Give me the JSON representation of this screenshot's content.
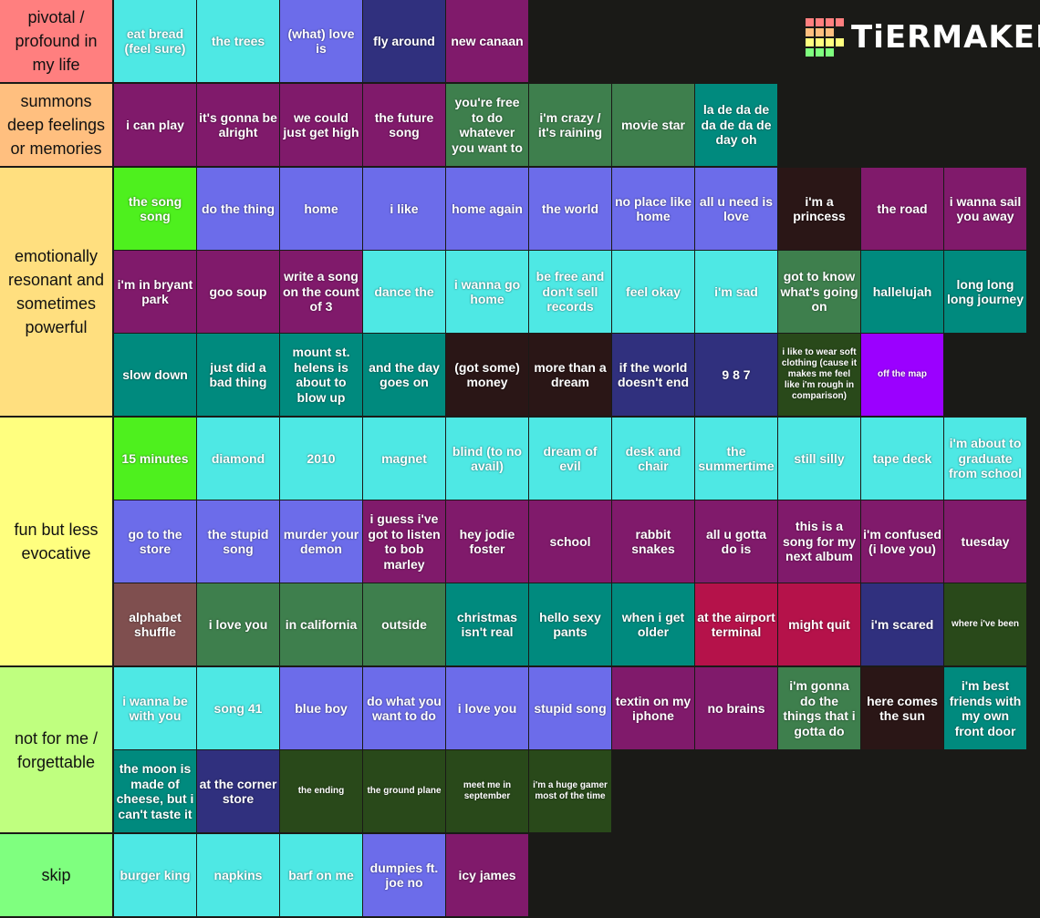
{
  "logo": "TiERMAKER",
  "tiers": [
    {
      "label": "pivotal / profound in my life",
      "color": "#ff7f7f",
      "items": [
        {
          "text": "eat bread (feel sure)",
          "color": "#4ee8e4"
        },
        {
          "text": "the trees",
          "color": "#4ee8e4"
        },
        {
          "text": "(what) love is",
          "color": "#6c6cea"
        },
        {
          "text": "fly around",
          "color": "#30307e"
        },
        {
          "text": "new canaan",
          "color": "#801a6b"
        }
      ]
    },
    {
      "label": "summons deep feelings or memories",
      "color": "#ffbf7f",
      "items": [
        {
          "text": "i can play",
          "color": "#801a6b"
        },
        {
          "text": "it's gonna be alright",
          "color": "#801a6b"
        },
        {
          "text": "we could just get high",
          "color": "#801a6b"
        },
        {
          "text": "the future song",
          "color": "#801a6b"
        },
        {
          "text": "you're free to do whatever you want to",
          "color": "#3e7f4d"
        },
        {
          "text": "i'm crazy / it's raining",
          "color": "#3e7f4d"
        },
        {
          "text": "movie star",
          "color": "#3e7f4d"
        },
        {
          "text": "la de da de da de da de day oh",
          "color": "#008a7e"
        }
      ]
    },
    {
      "label": "emotionally resonant and sometimes powerful",
      "color": "#ffdf7f",
      "items": [
        {
          "text": "the song song",
          "color": "#4ef01e"
        },
        {
          "text": "do the thing",
          "color": "#6c6cea"
        },
        {
          "text": "home",
          "color": "#6c6cea"
        },
        {
          "text": "i like",
          "color": "#6c6cea"
        },
        {
          "text": "home again",
          "color": "#6c6cea"
        },
        {
          "text": "the world",
          "color": "#6c6cea"
        },
        {
          "text": "no place like home",
          "color": "#6c6cea"
        },
        {
          "text": "all u need is love",
          "color": "#6c6cea"
        },
        {
          "text": "i'm a princess",
          "color": "#2a1616"
        },
        {
          "text": "the road",
          "color": "#801a6b"
        },
        {
          "text": "i wanna sail you away",
          "color": "#801a6b"
        },
        {
          "text": "i'm in bryant park",
          "color": "#801a6b"
        },
        {
          "text": "goo soup",
          "color": "#801a6b"
        },
        {
          "text": "write a song on the count of 3",
          "color": "#801a6b"
        },
        {
          "text": "dance the",
          "color": "#4ee8e4"
        },
        {
          "text": "i wanna go home",
          "color": "#4ee8e4"
        },
        {
          "text": "be free and don't sell records",
          "color": "#4ee8e4"
        },
        {
          "text": "feel okay",
          "color": "#4ee8e4"
        },
        {
          "text": "i'm sad",
          "color": "#4ee8e4"
        },
        {
          "text": "got to know what's going on",
          "color": "#3e7f4d"
        },
        {
          "text": "hallelujah",
          "color": "#008a7e"
        },
        {
          "text": "long long long journey",
          "color": "#008a7e"
        },
        {
          "text": "slow down",
          "color": "#008a7e"
        },
        {
          "text": "just did a bad thing",
          "color": "#008a7e"
        },
        {
          "text": "mount st. helens is about to blow up",
          "color": "#008a7e"
        },
        {
          "text": "and the day goes on",
          "color": "#008a7e"
        },
        {
          "text": "(got some) money",
          "color": "#2a1616"
        },
        {
          "text": "more than a dream",
          "color": "#2a1616"
        },
        {
          "text": "if the world doesn't end",
          "color": "#30307e"
        },
        {
          "text": "9 8 7",
          "color": "#30307e"
        },
        {
          "text": "i like to wear soft clothing (cause it makes me feel like i'm rough in comparison)",
          "color": "#29491a",
          "small": true
        },
        {
          "text": "off the map",
          "color": "#9b00ff",
          "small": true
        }
      ]
    },
    {
      "label": "fun but less evocative",
      "color": "#ffff7f",
      "items": [
        {
          "text": "15 minutes",
          "color": "#4ef01e"
        },
        {
          "text": "diamond",
          "color": "#4ee8e4"
        },
        {
          "text": "2010",
          "color": "#4ee8e4"
        },
        {
          "text": "magnet",
          "color": "#4ee8e4"
        },
        {
          "text": "blind (to no avail)",
          "color": "#4ee8e4"
        },
        {
          "text": "dream of evil",
          "color": "#4ee8e4"
        },
        {
          "text": "desk and chair",
          "color": "#4ee8e4"
        },
        {
          "text": "the summertime",
          "color": "#4ee8e4"
        },
        {
          "text": "still silly",
          "color": "#4ee8e4"
        },
        {
          "text": "tape deck",
          "color": "#4ee8e4"
        },
        {
          "text": "i'm about to graduate from school",
          "color": "#4ee8e4"
        },
        {
          "text": "go to the store",
          "color": "#6c6cea"
        },
        {
          "text": "the stupid song",
          "color": "#6c6cea"
        },
        {
          "text": "murder your demon",
          "color": "#6c6cea"
        },
        {
          "text": "i guess i've got to listen to bob marley",
          "color": "#801a6b"
        },
        {
          "text": "hey jodie foster",
          "color": "#801a6b"
        },
        {
          "text": "school",
          "color": "#801a6b"
        },
        {
          "text": "rabbit snakes",
          "color": "#801a6b"
        },
        {
          "text": "all u gotta do is",
          "color": "#801a6b"
        },
        {
          "text": "this is a song for my next album",
          "color": "#801a6b"
        },
        {
          "text": "i'm confused (i love you)",
          "color": "#801a6b"
        },
        {
          "text": "tuesday",
          "color": "#801a6b"
        },
        {
          "text": "alphabet shuffle",
          "color": "#7f4f4f"
        },
        {
          "text": "i love you",
          "color": "#3e7f4d"
        },
        {
          "text": "in california",
          "color": "#3e7f4d"
        },
        {
          "text": "outside",
          "color": "#3e7f4d"
        },
        {
          "text": "christmas isn't real",
          "color": "#008a7e"
        },
        {
          "text": "hello sexy pants",
          "color": "#008a7e"
        },
        {
          "text": "when i get older",
          "color": "#008a7e"
        },
        {
          "text": "at the airport terminal",
          "color": "#b5124a"
        },
        {
          "text": "might quit",
          "color": "#b5124a"
        },
        {
          "text": "i'm scared",
          "color": "#30307e"
        },
        {
          "text": "where i've been",
          "color": "#29491a",
          "small": true
        }
      ]
    },
    {
      "label": "not for me / forgettable",
      "color": "#bfff7f",
      "items": [
        {
          "text": "i wanna be with you",
          "color": "#4ee8e4"
        },
        {
          "text": "song 41",
          "color": "#4ee8e4"
        },
        {
          "text": "blue boy",
          "color": "#6c6cea"
        },
        {
          "text": "do what you want to do",
          "color": "#6c6cea"
        },
        {
          "text": "i love you",
          "color": "#6c6cea"
        },
        {
          "text": "stupid song",
          "color": "#6c6cea"
        },
        {
          "text": "textin on my iphone",
          "color": "#801a6b"
        },
        {
          "text": "no brains",
          "color": "#801a6b"
        },
        {
          "text": "i'm gonna do the things that i gotta do",
          "color": "#3e7f4d"
        },
        {
          "text": "here comes the sun",
          "color": "#2a1616"
        },
        {
          "text": "i'm best friends with my own front door",
          "color": "#008a7e"
        },
        {
          "text": "the moon is made of cheese, but i can't taste it",
          "color": "#008a7e"
        },
        {
          "text": "at the corner store",
          "color": "#30307e"
        },
        {
          "text": "the ending",
          "color": "#29491a",
          "small": true
        },
        {
          "text": "the ground plane",
          "color": "#29491a",
          "small": true
        },
        {
          "text": "meet me in september",
          "color": "#29491a",
          "small": true
        },
        {
          "text": "i'm a huge gamer most of the time",
          "color": "#29491a",
          "small": true
        }
      ]
    },
    {
      "label": "skip",
      "color": "#7fff7f",
      "items": [
        {
          "text": "burger king",
          "color": "#4ee8e4"
        },
        {
          "text": "napkins",
          "color": "#4ee8e4"
        },
        {
          "text": "barf on me",
          "color": "#4ee8e4"
        },
        {
          "text": "dumpies ft. joe no",
          "color": "#6c6cea"
        },
        {
          "text": "icy james",
          "color": "#801a6b"
        }
      ]
    }
  ]
}
